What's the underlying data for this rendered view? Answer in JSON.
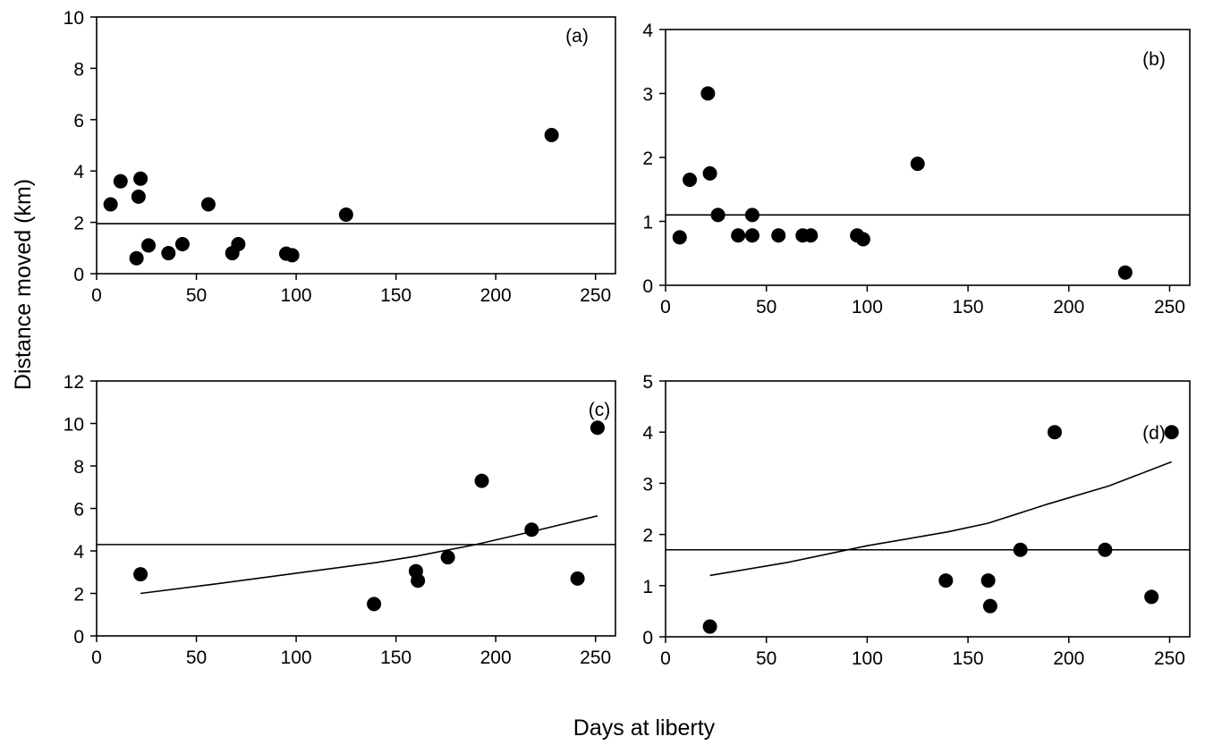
{
  "figure": {
    "ylabel": "Distance moved (km)",
    "xlabel": "Days at liberty"
  },
  "chart_data": [
    {
      "type": "scatter",
      "panel_label": "(a)",
      "xlim": [
        0,
        260
      ],
      "ylim": [
        0,
        10
      ],
      "xticks": [
        0,
        50,
        100,
        150,
        200,
        250
      ],
      "yticks": [
        0,
        2,
        4,
        6,
        8,
        10
      ],
      "points": [
        {
          "x": 7,
          "y": 2.7
        },
        {
          "x": 12,
          "y": 3.6
        },
        {
          "x": 20,
          "y": 0.6
        },
        {
          "x": 21,
          "y": 3.0
        },
        {
          "x": 22,
          "y": 3.7
        },
        {
          "x": 26,
          "y": 1.1
        },
        {
          "x": 36,
          "y": 0.8
        },
        {
          "x": 43,
          "y": 1.15
        },
        {
          "x": 56,
          "y": 2.7
        },
        {
          "x": 68,
          "y": 0.8
        },
        {
          "x": 71,
          "y": 1.15
        },
        {
          "x": 95,
          "y": 0.78
        },
        {
          "x": 98,
          "y": 0.72
        },
        {
          "x": 125,
          "y": 2.3
        },
        {
          "x": 228,
          "y": 5.4
        }
      ],
      "lines": [
        {
          "kind": "horizontal",
          "y": 1.95
        }
      ]
    },
    {
      "type": "scatter",
      "panel_label": "(b)",
      "xlim": [
        0,
        260
      ],
      "ylim": [
        0,
        4
      ],
      "xticks": [
        0,
        50,
        100,
        150,
        200,
        250
      ],
      "yticks": [
        0,
        1,
        2,
        3,
        4
      ],
      "points": [
        {
          "x": 7,
          "y": 0.75
        },
        {
          "x": 12,
          "y": 1.65
        },
        {
          "x": 21,
          "y": 3.0
        },
        {
          "x": 22,
          "y": 1.75
        },
        {
          "x": 26,
          "y": 1.1
        },
        {
          "x": 36,
          "y": 0.78
        },
        {
          "x": 43,
          "y": 1.1
        },
        {
          "x": 43,
          "y": 0.78
        },
        {
          "x": 56,
          "y": 0.78
        },
        {
          "x": 68,
          "y": 0.78
        },
        {
          "x": 72,
          "y": 0.78
        },
        {
          "x": 95,
          "y": 0.78
        },
        {
          "x": 98,
          "y": 0.72
        },
        {
          "x": 125,
          "y": 1.9
        },
        {
          "x": 228,
          "y": 0.2
        }
      ],
      "lines": [
        {
          "kind": "horizontal",
          "y": 1.1
        }
      ]
    },
    {
      "type": "scatter",
      "panel_label": "(c)",
      "xlim": [
        0,
        260
      ],
      "ylim": [
        0,
        12
      ],
      "xticks": [
        0,
        50,
        100,
        150,
        200,
        250
      ],
      "yticks": [
        0,
        2,
        4,
        6,
        8,
        10,
        12
      ],
      "points": [
        {
          "x": 22,
          "y": 2.9
        },
        {
          "x": 139,
          "y": 1.5
        },
        {
          "x": 160,
          "y": 3.05
        },
        {
          "x": 161,
          "y": 2.6
        },
        {
          "x": 176,
          "y": 3.7
        },
        {
          "x": 193,
          "y": 7.3
        },
        {
          "x": 218,
          "y": 5.0
        },
        {
          "x": 241,
          "y": 2.7
        },
        {
          "x": 251,
          "y": 9.8
        }
      ],
      "lines": [
        {
          "kind": "horizontal",
          "y": 4.3
        },
        {
          "kind": "curve",
          "points": [
            {
              "x": 22,
              "y": 2.0
            },
            {
              "x": 60,
              "y": 2.45
            },
            {
              "x": 100,
              "y": 2.95
            },
            {
              "x": 140,
              "y": 3.45
            },
            {
              "x": 160,
              "y": 3.75
            },
            {
              "x": 190,
              "y": 4.3
            },
            {
              "x": 220,
              "y": 4.95
            },
            {
              "x": 251,
              "y": 5.65
            }
          ]
        }
      ]
    },
    {
      "type": "scatter",
      "panel_label": "(d)",
      "xlim": [
        0,
        260
      ],
      "ylim": [
        0,
        5
      ],
      "xticks": [
        0,
        50,
        100,
        150,
        200,
        250
      ],
      "yticks": [
        0,
        1,
        2,
        3,
        4,
        5
      ],
      "points": [
        {
          "x": 22,
          "y": 0.2
        },
        {
          "x": 139,
          "y": 1.1
        },
        {
          "x": 160,
          "y": 1.1
        },
        {
          "x": 161,
          "y": 0.6
        },
        {
          "x": 176,
          "y": 1.7
        },
        {
          "x": 193,
          "y": 4.0
        },
        {
          "x": 218,
          "y": 1.7
        },
        {
          "x": 241,
          "y": 0.78
        },
        {
          "x": 251,
          "y": 4.0
        }
      ],
      "lines": [
        {
          "kind": "horizontal",
          "y": 1.7
        },
        {
          "kind": "curve",
          "points": [
            {
              "x": 22,
              "y": 1.2
            },
            {
              "x": 60,
              "y": 1.45
            },
            {
              "x": 100,
              "y": 1.78
            },
            {
              "x": 140,
              "y": 2.05
            },
            {
              "x": 160,
              "y": 2.22
            },
            {
              "x": 190,
              "y": 2.6
            },
            {
              "x": 220,
              "y": 2.95
            },
            {
              "x": 251,
              "y": 3.42
            }
          ]
        }
      ]
    }
  ]
}
